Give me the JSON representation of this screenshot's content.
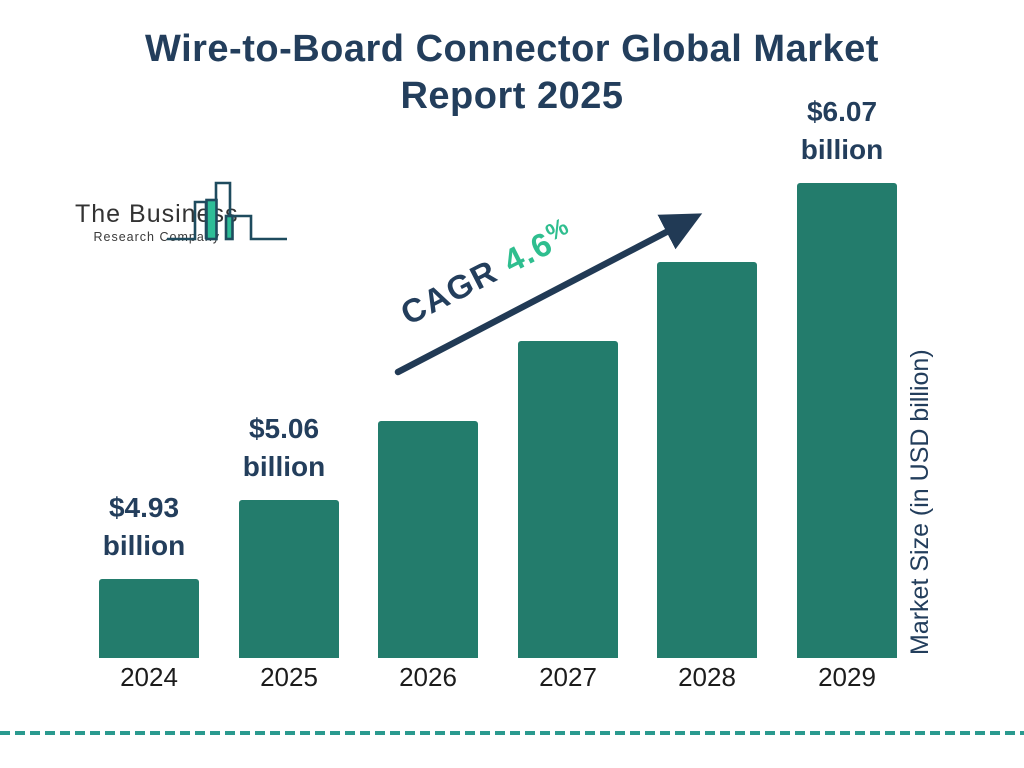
{
  "header": {
    "title": "Wire-to-Board Connector Global Market Report 2025"
  },
  "logo": {
    "line1": "The Business",
    "line2": "Research Company"
  },
  "chart_data": {
    "type": "bar",
    "title": "Wire-to-Board Connector Global Market Report 2025",
    "categories": [
      "2024",
      "2025",
      "2026",
      "2027",
      "2028",
      "2029"
    ],
    "series": [
      {
        "name": "Market Size (in USD billion)",
        "values": [
          4.93,
          5.06,
          5.29,
          5.54,
          5.79,
          6.07
        ]
      }
    ],
    "bar_value_labels": [
      {
        "line1": "$4.93",
        "line2": "billion"
      },
      {
        "line1": "$5.06",
        "line2": "billion"
      },
      null,
      null,
      null,
      {
        "line1": "$6.07",
        "line2": "billion"
      }
    ],
    "cagr": {
      "label": "CAGR",
      "value": "4.6",
      "suffix": "%"
    },
    "ylabel": "Market Size (in USD billion)",
    "xlabel": "",
    "legend": "none",
    "grid": "off",
    "colors": {
      "bar": "#237c6c",
      "navy": "#233e5c",
      "accent_green": "#2fbe8f",
      "dashed_line": "#2a9a8f",
      "logo_outline": "#1e4b5e",
      "logo_green": "#2ebd97"
    }
  }
}
